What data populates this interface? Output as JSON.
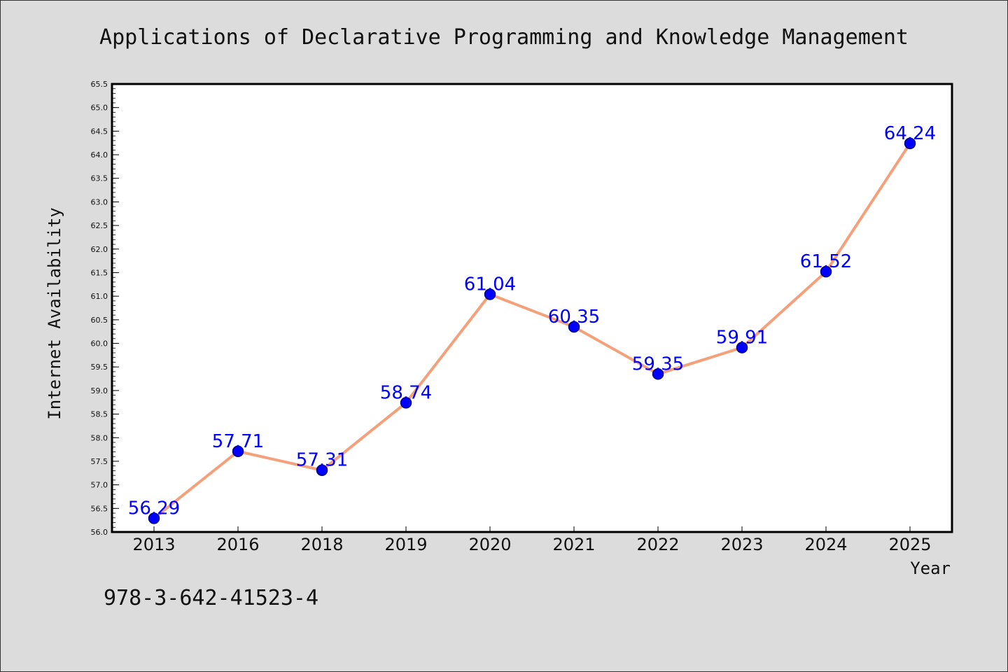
{
  "footer_text": "978-3-642-41523-4",
  "colors": {
    "background": "#dcdcdc",
    "plot_background": "#ffffff",
    "line": "#f4a07a",
    "marker_fill": "#0000ff",
    "marker_edge": "#000080",
    "data_label": "#0000ff"
  },
  "chart_data": {
    "type": "line",
    "title": "Applications of Declarative Programming and Knowledge Management",
    "xlabel": "Year",
    "ylabel": "Internet Availability",
    "categories": [
      "2013",
      "2016",
      "2018",
      "2019",
      "2020",
      "2021",
      "2022",
      "2023",
      "2024",
      "2025"
    ],
    "series": [
      {
        "values": [
          56.29,
          57.71,
          57.31,
          58.74,
          61.04,
          60.35,
          59.35,
          59.91,
          61.52,
          64.24
        ]
      }
    ],
    "data_labels": [
      "56.29",
      "57.71",
      "57.31",
      "58.74",
      "61.04",
      "60.35",
      "59.35",
      "59.91",
      "61.52",
      "64.24"
    ],
    "ylim": [
      56.0,
      65.5
    ],
    "yticks": [
      "56.0",
      "56.5",
      "57.0",
      "57.5",
      "58.0",
      "58.5",
      "59.0",
      "59.5",
      "60.0",
      "60.5",
      "61.0",
      "61.5",
      "62.0",
      "62.5",
      "63.0",
      "63.5",
      "64.0",
      "64.5",
      "65.0",
      "65.5"
    ],
    "grid": false,
    "legend": "none"
  }
}
